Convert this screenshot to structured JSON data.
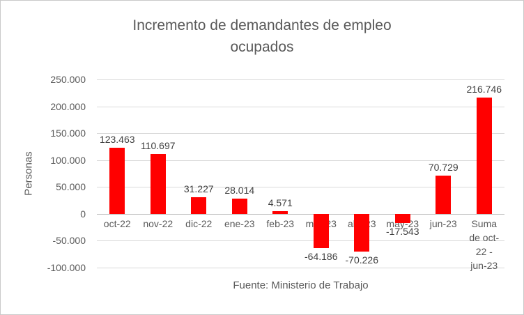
{
  "chart_data": {
    "type": "bar",
    "title": "Incremento de demandantes de empleo ocupados",
    "title_lines": [
      "Incremento de demandantes de empleo",
      "ocupados"
    ],
    "xlabel": "",
    "ylabel": "Personas",
    "source": "Fuente: Ministerio de Trabajo",
    "categories": [
      "oct-22",
      "nov-22",
      "dic-22",
      "ene-23",
      "feb-23",
      "mar-23",
      "abr-23",
      "may-23",
      "jun-23",
      "Suma de oct-22 - jun-23"
    ],
    "category_display": [
      "oct-22",
      "nov-22",
      "dic-22",
      "ene-23",
      "feb-23",
      "mar-23",
      "abr-23",
      "may-23",
      "jun-23",
      "Suma\nde oct-\n22 -\njun-23"
    ],
    "values": [
      123463,
      110697,
      31227,
      28014,
      4571,
      -64186,
      -70226,
      -17543,
      70729,
      216746
    ],
    "value_labels": [
      "123.463",
      "110.697",
      "31.227",
      "28.014",
      "4.571",
      "-64.186",
      "-70.226",
      "-17.543",
      "70.729",
      "216.746"
    ],
    "ylim": [
      -100000,
      250000
    ],
    "ytick_interval": 50000,
    "yticks": [
      250000,
      200000,
      150000,
      100000,
      50000,
      0,
      -50000,
      -100000
    ],
    "ytick_labels": [
      "250.000",
      "200.000",
      "150.000",
      "100.000",
      "50.000",
      "0",
      "-50.000",
      "-100.000"
    ],
    "bar_color": "#ff0000",
    "grid": true,
    "legend": "none"
  }
}
